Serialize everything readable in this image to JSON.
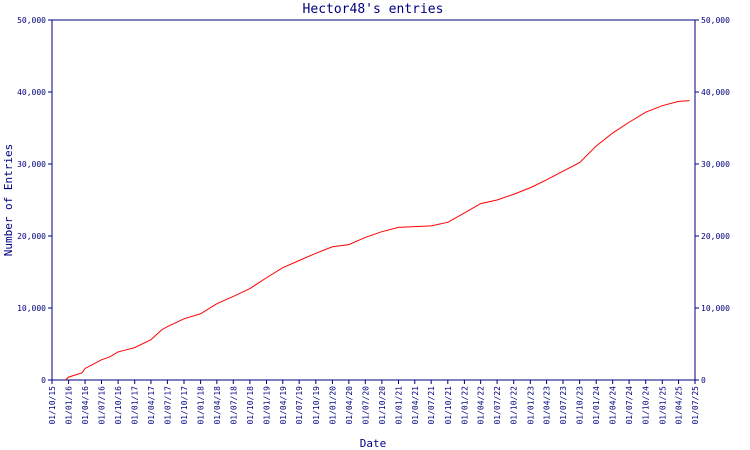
{
  "chart_data": {
    "type": "line",
    "title": "Hector48's entries",
    "xlabel": "Date",
    "ylabel": "Number of Entries",
    "ylim": [
      0,
      50000
    ],
    "xlim": [
      "2015-10-01",
      "2025-07-01"
    ],
    "grid": false,
    "y_ticks": [
      {
        "value": 0,
        "label": "0"
      },
      {
        "value": 10000,
        "label": "10,000"
      },
      {
        "value": 20000,
        "label": "20,000"
      },
      {
        "value": 30000,
        "label": "30,000"
      },
      {
        "value": 40000,
        "label": "40,000"
      },
      {
        "value": 50000,
        "label": "50,000"
      }
    ],
    "x_ticks": [
      {
        "date": "2015-10-01",
        "label": "01/10/15"
      },
      {
        "date": "2016-01-01",
        "label": "01/01/16"
      },
      {
        "date": "2016-04-01",
        "label": "01/04/16"
      },
      {
        "date": "2016-07-01",
        "label": "01/07/16"
      },
      {
        "date": "2016-10-01",
        "label": "01/10/16"
      },
      {
        "date": "2017-01-01",
        "label": "01/01/17"
      },
      {
        "date": "2017-04-01",
        "label": "01/04/17"
      },
      {
        "date": "2017-07-01",
        "label": "01/07/17"
      },
      {
        "date": "2017-10-01",
        "label": "01/10/17"
      },
      {
        "date": "2018-01-01",
        "label": "01/01/18"
      },
      {
        "date": "2018-04-01",
        "label": "01/04/18"
      },
      {
        "date": "2018-07-01",
        "label": "01/07/18"
      },
      {
        "date": "2018-10-01",
        "label": "01/10/18"
      },
      {
        "date": "2019-01-01",
        "label": "01/01/19"
      },
      {
        "date": "2019-04-01",
        "label": "01/04/19"
      },
      {
        "date": "2019-07-01",
        "label": "01/07/19"
      },
      {
        "date": "2019-10-01",
        "label": "01/10/19"
      },
      {
        "date": "2020-01-01",
        "label": "01/01/20"
      },
      {
        "date": "2020-04-01",
        "label": "01/04/20"
      },
      {
        "date": "2020-07-01",
        "label": "01/07/20"
      },
      {
        "date": "2020-10-01",
        "label": "01/10/20"
      },
      {
        "date": "2021-01-01",
        "label": "01/01/21"
      },
      {
        "date": "2021-04-01",
        "label": "01/04/21"
      },
      {
        "date": "2021-07-01",
        "label": "01/07/21"
      },
      {
        "date": "2021-10-01",
        "label": "01/10/21"
      },
      {
        "date": "2022-01-01",
        "label": "01/01/22"
      },
      {
        "date": "2022-04-01",
        "label": "01/04/22"
      },
      {
        "date": "2022-07-01",
        "label": "01/07/22"
      },
      {
        "date": "2022-10-01",
        "label": "01/10/22"
      },
      {
        "date": "2023-01-01",
        "label": "01/01/23"
      },
      {
        "date": "2023-04-01",
        "label": "01/04/23"
      },
      {
        "date": "2023-07-01",
        "label": "01/07/23"
      },
      {
        "date": "2023-10-01",
        "label": "01/10/23"
      },
      {
        "date": "2024-01-01",
        "label": "01/01/24"
      },
      {
        "date": "2024-04-01",
        "label": "01/04/24"
      },
      {
        "date": "2024-07-01",
        "label": "01/07/24"
      },
      {
        "date": "2024-10-01",
        "label": "01/10/24"
      },
      {
        "date": "2025-01-01",
        "label": "01/01/25"
      },
      {
        "date": "2025-04-01",
        "label": "01/04/25"
      },
      {
        "date": "2025-07-01",
        "label": "01/07/25"
      }
    ],
    "series": [
      {
        "color": "#ff0000",
        "points": [
          [
            "2015-12-15",
            0
          ],
          [
            "2016-01-01",
            400
          ],
          [
            "2016-03-15",
            1000
          ],
          [
            "2016-04-01",
            1600
          ],
          [
            "2016-07-01",
            2800
          ],
          [
            "2016-08-15",
            3200
          ],
          [
            "2016-10-01",
            3900
          ],
          [
            "2017-01-01",
            4500
          ],
          [
            "2017-04-01",
            5600
          ],
          [
            "2017-06-01",
            7000
          ],
          [
            "2017-07-01",
            7400
          ],
          [
            "2017-10-01",
            8500
          ],
          [
            "2018-01-01",
            9200
          ],
          [
            "2018-04-01",
            10600
          ],
          [
            "2018-07-01",
            11600
          ],
          [
            "2018-10-01",
            12700
          ],
          [
            "2019-01-01",
            14200
          ],
          [
            "2019-04-01",
            15600
          ],
          [
            "2019-07-01",
            16600
          ],
          [
            "2019-10-01",
            17600
          ],
          [
            "2020-01-01",
            18500
          ],
          [
            "2020-04-01",
            18800
          ],
          [
            "2020-07-01",
            19800
          ],
          [
            "2020-10-01",
            20600
          ],
          [
            "2021-01-01",
            21200
          ],
          [
            "2021-04-01",
            21300
          ],
          [
            "2021-07-01",
            21400
          ],
          [
            "2021-10-01",
            21900
          ],
          [
            "2022-01-01",
            23200
          ],
          [
            "2022-04-01",
            24500
          ],
          [
            "2022-07-01",
            25000
          ],
          [
            "2022-10-01",
            25800
          ],
          [
            "2023-01-01",
            26700
          ],
          [
            "2023-04-01",
            27800
          ],
          [
            "2023-07-01",
            29000
          ],
          [
            "2023-10-01",
            30200
          ],
          [
            "2024-01-01",
            32500
          ],
          [
            "2024-04-01",
            34300
          ],
          [
            "2024-07-01",
            35800
          ],
          [
            "2024-10-01",
            37200
          ],
          [
            "2025-01-01",
            38100
          ],
          [
            "2025-04-01",
            38700
          ],
          [
            "2025-06-01",
            38800
          ]
        ]
      }
    ]
  }
}
